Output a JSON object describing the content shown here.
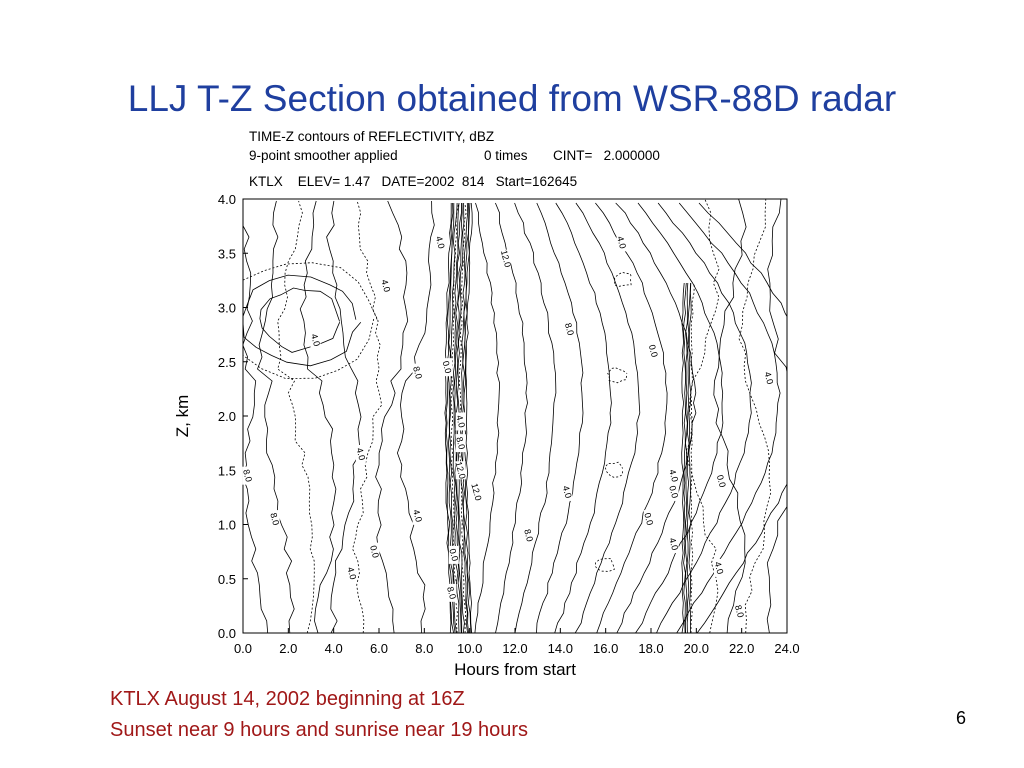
{
  "slide": {
    "title": "LLJ T-Z Section obtained from WSR-88D radar",
    "caption_line1": "KTLX August 14, 2002 beginning at 16Z",
    "caption_line2": "Sunset near 9 hours and sunrise near 19 hours",
    "page_number": "6"
  },
  "plot_header": {
    "line1": "TIME-Z contours of REFLECTIVITY, dBZ",
    "line2a": "9-point smoother applied",
    "line2b": "0 times",
    "line2c": "CINT=   2.000000",
    "line3": "KTLX    ELEV= 1.47   DATE=2002  814   Start=162645"
  },
  "colors": {
    "title": "#1f3f9f",
    "caption": "#a01818",
    "plot": "#000000"
  },
  "chart_data": {
    "type": "contour",
    "title": "TIME-Z contours of REFLECTIVITY, dBZ",
    "xlabel": "Hours from start",
    "ylabel": "Z, km",
    "xlim": [
      0.0,
      24.0
    ],
    "ylim": [
      0.0,
      4.0
    ],
    "x_ticks": [
      "0.0",
      "2.0",
      "4.0",
      "6.0",
      "8.0",
      "10.0",
      "12.0",
      "14.0",
      "16.0",
      "18.0",
      "20.0",
      "22.0",
      "24.0"
    ],
    "y_ticks": [
      "0.0",
      "0.5",
      "1.0",
      "1.5",
      "2.0",
      "2.5",
      "3.0",
      "3.5",
      "4.0"
    ],
    "contour_interval": 2.0,
    "contour_labels": [
      {
        "text": "4.0",
        "x": 8.7,
        "y": 3.6
      },
      {
        "text": "12.0",
        "x": 11.6,
        "y": 3.45
      },
      {
        "text": "4.0",
        "x": 16.7,
        "y": 3.6
      },
      {
        "text": "4.0",
        "x": 6.3,
        "y": 3.2
      },
      {
        "text": "8.0",
        "x": 14.4,
        "y": 2.8
      },
      {
        "text": "4.0",
        "x": 3.2,
        "y": 2.7
      },
      {
        "text": "0.0",
        "x": 18.1,
        "y": 2.6
      },
      {
        "text": "8.0",
        "x": 7.7,
        "y": 2.4
      },
      {
        "text": "0.0",
        "x": 9.0,
        "y": 2.45
      },
      {
        "text": "4.0",
        "x": 23.2,
        "y": 2.35
      },
      {
        "text": "4.0",
        "x": 9.6,
        "y": 1.95
      },
      {
        "text": "8.0",
        "x": 9.6,
        "y": 1.75
      },
      {
        "text": "4.0",
        "x": 5.2,
        "y": 1.65
      },
      {
        "text": "12.0",
        "x": 9.6,
        "y": 1.5
      },
      {
        "text": "8.0",
        "x": 0.2,
        "y": 1.45
      },
      {
        "text": "4.0",
        "x": 19.0,
        "y": 1.45
      },
      {
        "text": "0.0",
        "x": 21.1,
        "y": 1.4
      },
      {
        "text": "12.0",
        "x": 10.3,
        "y": 1.3
      },
      {
        "text": "0.0",
        "x": 19.0,
        "y": 1.3
      },
      {
        "text": "4.0",
        "x": 14.3,
        "y": 1.3
      },
      {
        "text": "8.0",
        "x": 1.4,
        "y": 1.05
      },
      {
        "text": "4.0",
        "x": 7.7,
        "y": 1.08
      },
      {
        "text": "0.0",
        "x": 17.9,
        "y": 1.05
      },
      {
        "text": "8.0",
        "x": 12.6,
        "y": 0.9
      },
      {
        "text": "0.0",
        "x": 5.8,
        "y": 0.75
      },
      {
        "text": "0.0",
        "x": 9.3,
        "y": 0.72
      },
      {
        "text": "4.0",
        "x": 19.0,
        "y": 0.82
      },
      {
        "text": "4.0",
        "x": 4.8,
        "y": 0.55
      },
      {
        "text": "4.0",
        "x": 21.0,
        "y": 0.6
      },
      {
        "text": "8.0",
        "x": 9.2,
        "y": 0.37
      },
      {
        "text": "8.0",
        "x": 21.9,
        "y": 0.2
      }
    ]
  }
}
